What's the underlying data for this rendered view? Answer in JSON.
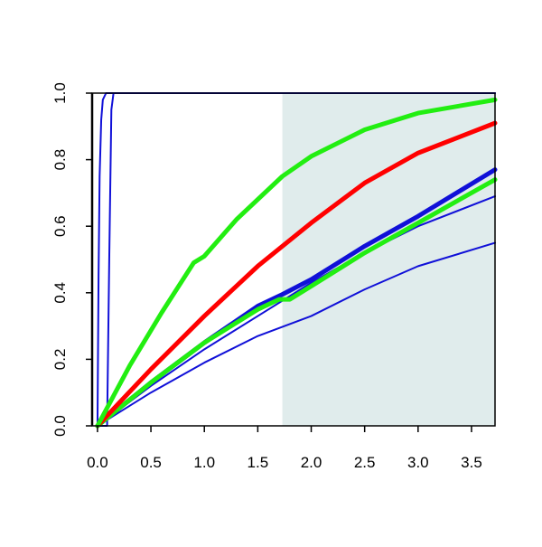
{
  "chart_data": {
    "type": "line",
    "title": "",
    "xlabel": "",
    "ylabel": "",
    "xlim": [
      -0.05,
      3.72
    ],
    "ylim": [
      0,
      1
    ],
    "grid": false,
    "x_ticks": [
      "0.0",
      "0.5",
      "1.0",
      "1.5",
      "2.0",
      "2.5",
      "3.0",
      "3.5"
    ],
    "y_ticks": [
      "0.0",
      "0.2",
      "0.4",
      "0.6",
      "0.8",
      "1.0"
    ],
    "shaded_region": {
      "x_start": 1.73,
      "x_end": 3.72,
      "color": "#e0ecec"
    },
    "colors": {
      "blue": "#1010d8",
      "red": "#ff0000",
      "green": "#22ee11"
    },
    "series": [
      {
        "color": "blue",
        "weight": "thin",
        "points": [
          [
            0,
            0
          ],
          [
            0.01,
            0.45
          ],
          [
            0.02,
            0.75
          ],
          [
            0.035,
            0.92
          ],
          [
            0.05,
            0.98
          ],
          [
            0.08,
            1.0
          ],
          [
            3.72,
            1.0
          ]
        ]
      },
      {
        "color": "blue",
        "weight": "thin",
        "points": [
          [
            0,
            0
          ],
          [
            0.09,
            0.0
          ],
          [
            0.11,
            0.5
          ],
          [
            0.13,
            0.95
          ],
          [
            0.15,
            1.0
          ],
          [
            3.72,
            1.0
          ]
        ]
      },
      {
        "color": "blue",
        "weight": "thin",
        "points": [
          [
            0,
            0
          ],
          [
            0.5,
            0.1
          ],
          [
            1.0,
            0.19
          ],
          [
            1.5,
            0.27
          ],
          [
            2.0,
            0.33
          ],
          [
            2.5,
            0.41
          ],
          [
            3.0,
            0.48
          ],
          [
            3.72,
            0.55
          ]
        ]
      },
      {
        "color": "blue",
        "weight": "thin",
        "points": [
          [
            0,
            0
          ],
          [
            0.5,
            0.12
          ],
          [
            1.0,
            0.23
          ],
          [
            1.5,
            0.33
          ],
          [
            2.0,
            0.43
          ],
          [
            2.5,
            0.52
          ],
          [
            3.0,
            0.6
          ],
          [
            3.72,
            0.69
          ]
        ]
      },
      {
        "color": "blue",
        "weight": "thick",
        "points": [
          [
            0,
            0
          ],
          [
            0.5,
            0.13
          ],
          [
            1.0,
            0.25
          ],
          [
            1.5,
            0.36
          ],
          [
            1.73,
            0.395
          ],
          [
            2.0,
            0.44
          ],
          [
            2.5,
            0.54
          ],
          [
            3.0,
            0.63
          ],
          [
            3.72,
            0.77
          ]
        ]
      },
      {
        "color": "green",
        "weight": "thick",
        "points": [
          [
            0,
            0
          ],
          [
            0.5,
            0.13
          ],
          [
            1.0,
            0.25
          ],
          [
            1.5,
            0.35
          ],
          [
            1.7,
            0.38
          ],
          [
            1.8,
            0.38
          ],
          [
            2.0,
            0.42
          ],
          [
            2.5,
            0.52
          ],
          [
            3.0,
            0.61
          ],
          [
            3.72,
            0.74
          ]
        ]
      },
      {
        "color": "red",
        "weight": "thick",
        "points": [
          [
            0,
            0
          ],
          [
            0.5,
            0.17
          ],
          [
            1.0,
            0.33
          ],
          [
            1.5,
            0.48
          ],
          [
            2.0,
            0.61
          ],
          [
            2.5,
            0.73
          ],
          [
            3.0,
            0.82
          ],
          [
            3.72,
            0.91
          ]
        ]
      },
      {
        "color": "green",
        "weight": "thick",
        "points": [
          [
            0,
            0
          ],
          [
            0.3,
            0.18
          ],
          [
            0.6,
            0.34
          ],
          [
            0.9,
            0.49
          ],
          [
            0.95,
            0.5
          ],
          [
            1.0,
            0.51
          ],
          [
            1.3,
            0.62
          ],
          [
            1.73,
            0.75
          ],
          [
            2.0,
            0.81
          ],
          [
            2.5,
            0.89
          ],
          [
            3.0,
            0.94
          ],
          [
            3.72,
            0.98
          ]
        ]
      }
    ]
  }
}
